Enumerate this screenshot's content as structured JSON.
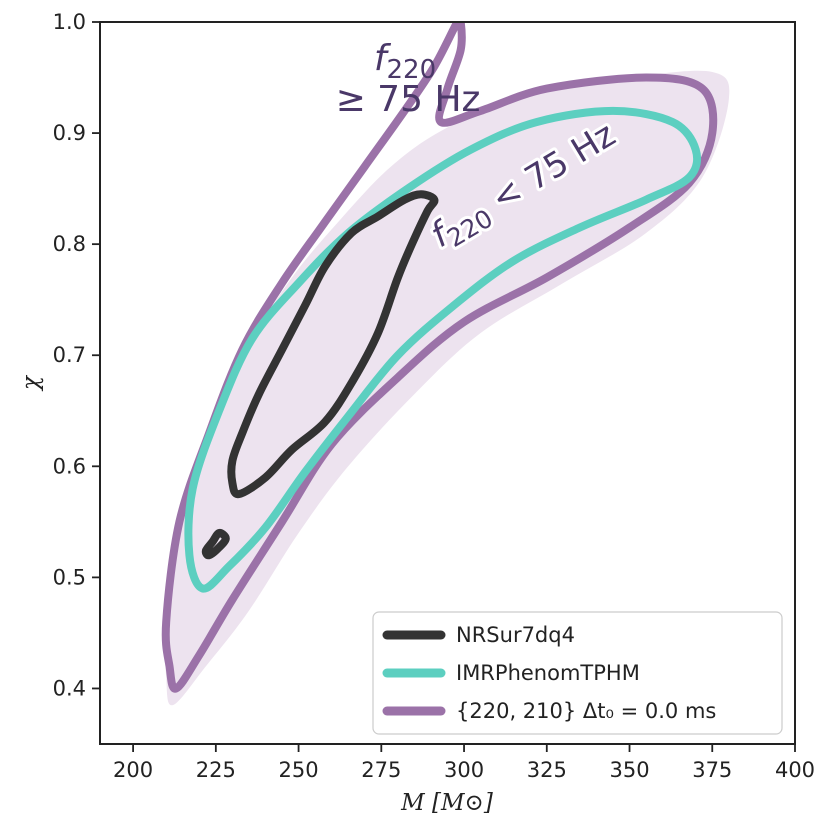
{
  "chart_data": {
    "type": "contour",
    "xlabel": "M [M⊙]",
    "ylabel": "χ",
    "xlim": [
      190,
      400
    ],
    "ylim": [
      0.35,
      1.0
    ],
    "xticks": [
      200,
      225,
      250,
      275,
      300,
      325,
      350,
      375,
      400
    ],
    "yticks": [
      0.4,
      0.5,
      0.6,
      0.7,
      0.8,
      0.9,
      1.0
    ],
    "xtick_labels": [
      "200",
      "225",
      "250",
      "275",
      "300",
      "325",
      "350",
      "375",
      "400"
    ],
    "ytick_labels": [
      "0.4",
      "0.5",
      "0.6",
      "0.7",
      "0.8",
      "0.9",
      "1.0"
    ],
    "legend_position": "lower-right",
    "colors": {
      "nrsur": "#333333",
      "imr": "#5ccfc0",
      "ringdown": "#9b72a8",
      "ringdown_fill": "#ede3ef",
      "annotation": "#4a3868"
    },
    "annotations": [
      {
        "name": "f-high",
        "line1": "f",
        "sub1": "220",
        "line2": "≥ 75 Hz"
      },
      {
        "name": "f-low",
        "text": "f",
        "sub": "220",
        "rest": " < 75 Hz"
      }
    ],
    "series": [
      {
        "name": "NRSur7dq4",
        "key": "nrsur",
        "contours": [
          [
            [
              232,
              0.575
            ],
            [
              240,
              0.59
            ],
            [
              248,
              0.615
            ],
            [
              258,
              0.64
            ],
            [
              266,
              0.675
            ],
            [
              274,
              0.72
            ],
            [
              280,
              0.77
            ],
            [
              285,
              0.805
            ],
            [
              289,
              0.83
            ],
            [
              291,
              0.84
            ],
            [
              287,
              0.845
            ],
            [
              282,
              0.84
            ],
            [
              274,
              0.825
            ],
            [
              266,
              0.81
            ],
            [
              258,
              0.78
            ],
            [
              252,
              0.745
            ],
            [
              245,
              0.705
            ],
            [
              238,
              0.665
            ],
            [
              233,
              0.63
            ],
            [
              230,
              0.605
            ],
            [
              230,
              0.585
            ]
          ],
          [
            [
              223,
              0.52
            ],
            [
              226,
              0.527
            ],
            [
              228,
              0.535
            ],
            [
              226,
              0.54
            ],
            [
              224,
              0.532
            ],
            [
              222,
              0.524
            ]
          ]
        ]
      },
      {
        "name": "IMRPhenomTPHM",
        "key": "imr",
        "contours": [
          [
            [
              221,
              0.49
            ],
            [
              229,
              0.51
            ],
            [
              240,
              0.545
            ],
            [
              252,
              0.595
            ],
            [
              265,
              0.645
            ],
            [
              280,
              0.7
            ],
            [
              297,
              0.745
            ],
            [
              315,
              0.785
            ],
            [
              335,
              0.815
            ],
            [
              355,
              0.84
            ],
            [
              368,
              0.86
            ],
            [
              370,
              0.885
            ],
            [
              363,
              0.91
            ],
            [
              345,
              0.92
            ],
            [
              322,
              0.91
            ],
            [
              302,
              0.885
            ],
            [
              283,
              0.85
            ],
            [
              265,
              0.81
            ],
            [
              250,
              0.765
            ],
            [
              236,
              0.715
            ],
            [
              226,
              0.65
            ],
            [
              218,
              0.58
            ],
            [
              217,
              0.52
            ]
          ]
        ]
      },
      {
        "name": "{220, 210} Δt₀ = 0.0 ms",
        "key": "ringdown",
        "contours": [
          [
            [
              213,
              0.4
            ],
            [
              220,
              0.43
            ],
            [
              230,
              0.48
            ],
            [
              245,
              0.55
            ],
            [
              260,
              0.62
            ],
            [
              280,
              0.68
            ],
            [
              300,
              0.73
            ],
            [
              325,
              0.77
            ],
            [
              350,
              0.815
            ],
            [
              368,
              0.855
            ],
            [
              375,
              0.9
            ],
            [
              372,
              0.94
            ],
            [
              355,
              0.95
            ],
            [
              325,
              0.94
            ],
            [
              305,
              0.92
            ],
            [
              293,
              0.91
            ],
            [
              295,
              0.94
            ],
            [
              299,
              0.975
            ],
            [
              299,
              1.0
            ],
            [
              298,
              1.0
            ],
            [
              291,
              0.96
            ],
            [
              282,
              0.92
            ],
            [
              270,
              0.87
            ],
            [
              258,
              0.82
            ],
            [
              245,
              0.765
            ],
            [
              233,
              0.705
            ],
            [
              223,
              0.63
            ],
            [
              214,
              0.55
            ],
            [
              210,
              0.46
            ],
            [
              211,
              0.42
            ]
          ]
        ]
      }
    ],
    "fill_region": [
      [
        212,
        0.385
      ],
      [
        222,
        0.42
      ],
      [
        235,
        0.47
      ],
      [
        250,
        0.54
      ],
      [
        265,
        0.6
      ],
      [
        285,
        0.665
      ],
      [
        305,
        0.72
      ],
      [
        330,
        0.765
      ],
      [
        355,
        0.81
      ],
      [
        372,
        0.86
      ],
      [
        380,
        0.93
      ],
      [
        375,
        0.955
      ],
      [
        350,
        0.95
      ],
      [
        320,
        0.935
      ],
      [
        295,
        0.905
      ],
      [
        278,
        0.87
      ],
      [
        262,
        0.82
      ],
      [
        248,
        0.77
      ],
      [
        235,
        0.71
      ],
      [
        224,
        0.64
      ],
      [
        215,
        0.56
      ],
      [
        210,
        0.47
      ],
      [
        210,
        0.41
      ]
    ]
  }
}
